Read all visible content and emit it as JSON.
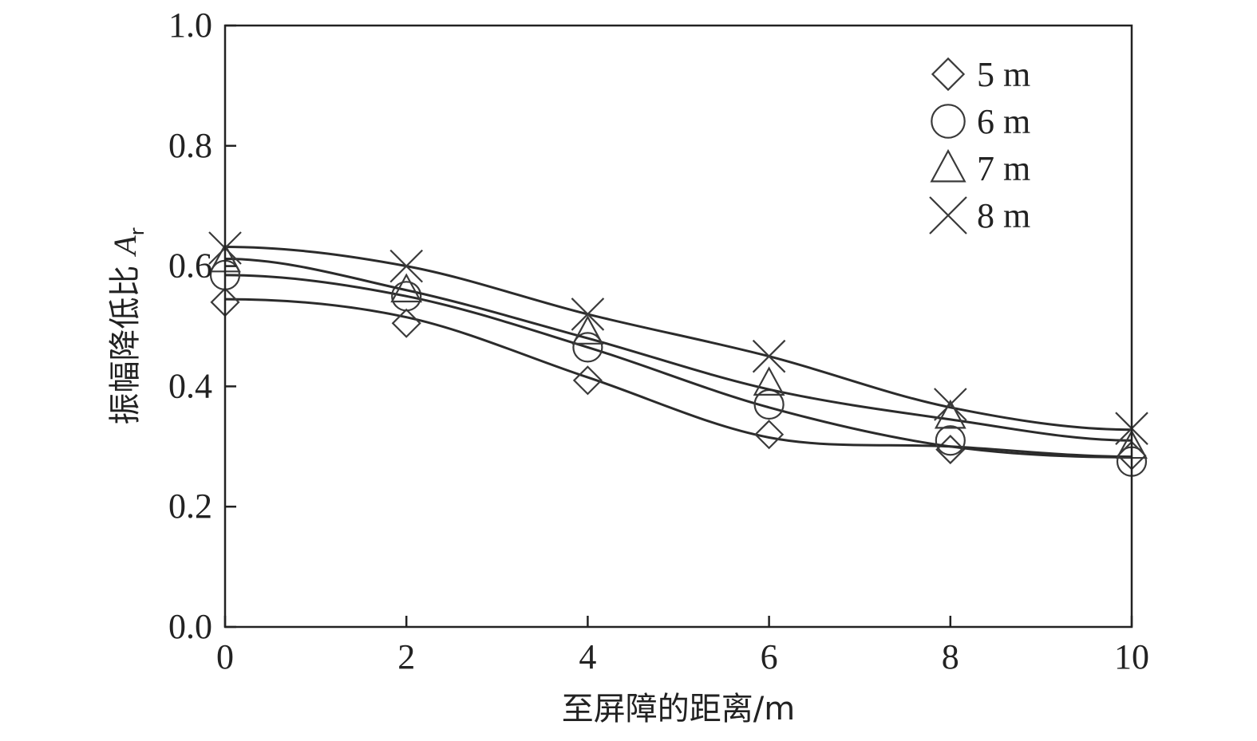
{
  "chart_data": {
    "type": "line",
    "xlabel": "至屏障的距离/m",
    "ylabel": {
      "text": "振幅降低比 ",
      "symbol": "A",
      "subscript": "r"
    },
    "xlim": [
      0,
      10
    ],
    "ylim": [
      0,
      1.0
    ],
    "x_ticks": [
      0,
      2,
      4,
      6,
      8,
      10
    ],
    "x_tick_labels": [
      "0",
      "2",
      "4",
      "6",
      "8",
      "10"
    ],
    "y_ticks": [
      0.0,
      0.2,
      0.4,
      0.6,
      0.8,
      1.0
    ],
    "y_tick_labels": [
      "0.0",
      "0.2",
      "0.4",
      "0.6",
      "0.8",
      "1.0"
    ],
    "grid": false,
    "legend_position": "top-right",
    "x": [
      0,
      2,
      4,
      6,
      8,
      10
    ],
    "series": [
      {
        "name": "5 m",
        "marker": "diamond",
        "values": [
          0.54,
          0.505,
          0.41,
          0.32,
          0.295,
          0.285
        ],
        "fit": [
          0.545,
          0.515,
          0.415,
          0.315,
          0.3,
          0.283
        ]
      },
      {
        "name": "6 m",
        "marker": "circle",
        "values": [
          0.585,
          0.55,
          0.465,
          0.37,
          0.31,
          0.275
        ],
        "fit": [
          0.585,
          0.55,
          0.465,
          0.365,
          0.3,
          0.282
        ]
      },
      {
        "name": "7 m",
        "marker": "triangle",
        "values": [
          0.61,
          0.56,
          0.49,
          0.405,
          0.35,
          0.3
        ],
        "fit": [
          0.612,
          0.56,
          0.48,
          0.395,
          0.345,
          0.31
        ]
      },
      {
        "name": "8 m",
        "marker": "x",
        "values": [
          0.63,
          0.6,
          0.52,
          0.45,
          0.37,
          0.33
        ],
        "fit": [
          0.632,
          0.6,
          0.52,
          0.45,
          0.365,
          0.328
        ]
      }
    ],
    "colors": {
      "line": "#2b2b2b",
      "marker": "#3a3a3a",
      "axis": "#222222"
    }
  }
}
